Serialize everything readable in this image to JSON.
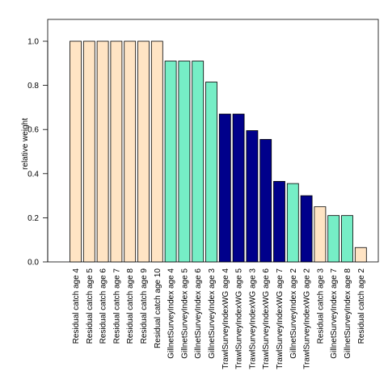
{
  "chart_data": {
    "type": "bar",
    "title": "",
    "xlabel": "",
    "ylabel": "relative weight",
    "ylim": [
      0,
      1.1
    ],
    "yticks": [
      "0.0",
      "0.2",
      "0.4",
      "0.6",
      "0.8",
      "1.0"
    ],
    "grid": false,
    "colors": {
      "Residual catch": "#FFE4C4",
      "GillnetSurveyIndex": "#76EEC6",
      "TrawlSurveyIndexWG": "#00008B"
    },
    "categories": [
      "Residual catch age 4",
      "Residual catch age 5",
      "Residual catch age 6",
      "Residual catch age 7",
      "Residual catch age 8",
      "Residual catch age 9",
      "Residual catch age 10",
      "GillnetSurveyIndex age 4",
      "GillnetSurveyIndex age 5",
      "GillnetSurveyIndex age 6",
      "GillnetSurveyIndex age 3",
      "TrawlSurveyIndexWG age 4",
      "TrawlSurveyIndexWG age 5",
      "TrawlSurveyIndexWG age 3",
      "TrawlSurveyIndexWG age 6",
      "TrawlSurveyIndexWG age 7",
      "GillnetSurveyIndex age 2",
      "TrawlSurveyIndexWG age 2",
      "Residual catch age 3",
      "GillnetSurveyIndex age 7",
      "GillnetSurveyIndex age 8",
      "Residual catch age 2"
    ],
    "values": [
      1.0,
      1.0,
      1.0,
      1.0,
      1.0,
      1.0,
      1.0,
      0.91,
      0.91,
      0.91,
      0.815,
      0.67,
      0.67,
      0.595,
      0.555,
      0.365,
      0.355,
      0.3,
      0.25,
      0.21,
      0.21,
      0.065
    ]
  }
}
